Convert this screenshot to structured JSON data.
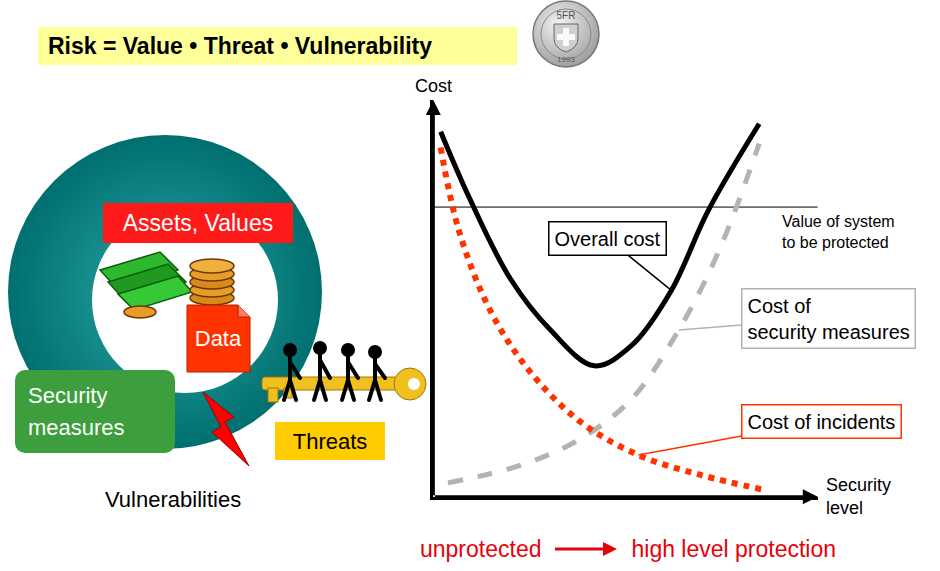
{
  "formula": "Risk = Value • Threat • Vulnerability",
  "coin": {
    "denomination": "5FR",
    "year": "1993"
  },
  "diagram": {
    "assets": "Assets, Values",
    "data": "Data",
    "security_measures": "Security\nmeasures",
    "threats": "Threats",
    "vulnerabilities": "Vulnerabilities"
  },
  "chart_data": {
    "type": "line",
    "x_label": "Security\nlevel",
    "y_label": "Cost",
    "xlim": [
      0,
      10.5
    ],
    "ylim": [
      0,
      10
    ],
    "xticks": [],
    "yticks": [],
    "tick_labels": false,
    "grid": false,
    "series": [
      {
        "name": "Overall cost",
        "color": "#000000",
        "line_style": "solid",
        "x": [
          0.2,
          1.0,
          2.1,
          3.2,
          4.4,
          5.4,
          6.5,
          7.5,
          8.9
        ],
        "values": [
          9.2,
          7.5,
          5.5,
          4.2,
          3.3,
          3.8,
          5.2,
          7.2,
          9.4
        ]
      },
      {
        "name": "Cost of\nsecurity measures",
        "color": "#b3b3b3",
        "line_style": "dashed",
        "x": [
          0.4,
          2.4,
          4.0,
          5.4,
          6.7,
          7.8,
          8.9
        ],
        "values": [
          0.35,
          0.8,
          1.45,
          2.45,
          4.2,
          6.2,
          8.9
        ]
      },
      {
        "name": "Cost of incidents",
        "color": "#ff3300",
        "line_style": "dotted",
        "x": [
          0.2,
          0.7,
          1.55,
          2.6,
          4.0,
          5.6,
          7.3,
          9.0
        ],
        "values": [
          8.8,
          6.7,
          4.7,
          3.2,
          1.9,
          1.05,
          0.55,
          0.18
        ]
      }
    ],
    "reference_line": {
      "value": 7.3,
      "label": "Value of system\nto be protected"
    },
    "x_direction": {
      "from": "unprotected",
      "to": "high level protection"
    }
  }
}
